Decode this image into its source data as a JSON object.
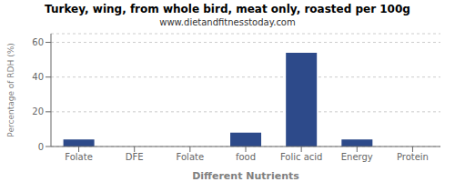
{
  "chart_data": {
    "type": "bar",
    "title": "Turkey, wing, from whole bird, meat only, roasted per 100g",
    "subtitle": "www.dietandfitnesstoday.com",
    "xlabel": "Different Nutrients",
    "ylabel": "Percentage of RDH (%)",
    "categories": [
      "Folate",
      "DFE",
      "Folate",
      "food",
      "Folic acid",
      "Energy",
      "Protein"
    ],
    "values": [
      4.0,
      0.0,
      0.0,
      8.0,
      54.0,
      4.0,
      0.0
    ],
    "color": "#2d4a8a",
    "ylim": [
      0,
      65
    ],
    "yticks": [
      0,
      20,
      40,
      60
    ],
    "grid": true
  }
}
